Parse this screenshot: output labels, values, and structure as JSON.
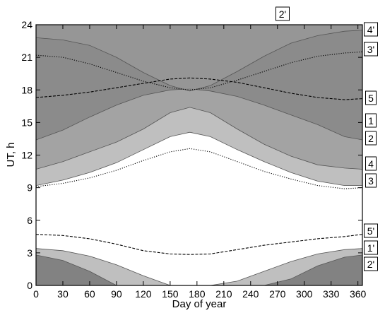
{
  "chart_data": {
    "type": "area",
    "xlabel": "Day of year",
    "ylabel": "UT, h",
    "xlim": [
      0,
      365
    ],
    "ylim": [
      0,
      24
    ],
    "xticks": [
      0,
      30,
      60,
      90,
      120,
      150,
      180,
      210,
      240,
      270,
      300,
      330,
      360
    ],
    "yticks": [
      0,
      3,
      6,
      9,
      12,
      15,
      18,
      21,
      24
    ],
    "grid": false,
    "series": [
      {
        "name": "1",
        "color": "#6e6e6e",
        "x": [
          0,
          30,
          60,
          90,
          120,
          150,
          172,
          195,
          225,
          255,
          285,
          315,
          345,
          365
        ],
        "y": [
          13.4,
          14.3,
          15.5,
          16.6,
          17.5,
          18.0,
          18.1,
          17.9,
          17.4,
          16.6,
          15.7,
          14.8,
          13.7,
          13.4
        ]
      },
      {
        "name": "2",
        "color": "#8c8c8c",
        "x": [
          0,
          30,
          60,
          90,
          120,
          150,
          172,
          195,
          225,
          255,
          285,
          315,
          345,
          365
        ],
        "y": [
          10.7,
          11.4,
          12.3,
          13.2,
          14.4,
          15.9,
          16.4,
          15.9,
          14.4,
          13.0,
          11.9,
          11.1,
          10.8,
          10.7
        ]
      },
      {
        "name": "3",
        "style": "dotted",
        "x": [
          0,
          30,
          60,
          90,
          120,
          150,
          172,
          195,
          225,
          255,
          285,
          315,
          345,
          365
        ],
        "y": [
          9.1,
          9.4,
          9.9,
          10.6,
          11.5,
          12.3,
          12.6,
          12.3,
          11.4,
          10.5,
          9.8,
          9.2,
          8.9,
          9.0
        ]
      },
      {
        "name": "4",
        "color": "#b4b4b4",
        "x": [
          0,
          30,
          60,
          90,
          120,
          150,
          172,
          195,
          225,
          255,
          285,
          315,
          345,
          365
        ],
        "y": [
          9.2,
          9.7,
          10.4,
          11.3,
          12.5,
          13.7,
          14.1,
          13.7,
          12.5,
          11.4,
          10.4,
          9.6,
          9.2,
          9.2
        ]
      },
      {
        "name": "5",
        "style": "dashed",
        "x": [
          0,
          30,
          60,
          90,
          120,
          150,
          172,
          195,
          225,
          255,
          285,
          315,
          345,
          365
        ],
        "y": [
          17.3,
          17.5,
          17.8,
          18.2,
          18.6,
          19.0,
          19.1,
          19.0,
          18.7,
          18.2,
          17.7,
          17.3,
          17.1,
          17.2
        ]
      },
      {
        "name": "5'",
        "style": "dashed",
        "x": [
          0,
          30,
          60,
          90,
          120,
          150,
          172,
          195,
          225,
          255,
          285,
          315,
          345,
          365
        ],
        "y": [
          4.7,
          4.6,
          4.3,
          3.8,
          3.2,
          2.9,
          2.85,
          2.9,
          3.3,
          3.7,
          4.0,
          4.3,
          4.5,
          4.7
        ]
      },
      {
        "name": "1'",
        "color": "#b4b4b4",
        "x": [
          0,
          30,
          60,
          90,
          120,
          150,
          172,
          195,
          225,
          255,
          285,
          315,
          345,
          365
        ],
        "y": [
          3.4,
          3.2,
          2.7,
          1.9,
          0.9,
          0.0,
          0.0,
          0.0,
          0.4,
          1.3,
          2.2,
          2.9,
          3.3,
          3.4
        ]
      },
      {
        "name": "2'",
        "color": "#6e6e6e",
        "x": [
          0,
          30,
          60,
          90,
          120,
          150,
          172,
          195,
          225,
          255,
          285,
          315,
          345,
          365
        ],
        "y": [
          2.8,
          2.3,
          1.3,
          0.0,
          0.0,
          0.0,
          0.0,
          0.0,
          0.0,
          0.0,
          0.6,
          1.8,
          2.6,
          2.8
        ]
      },
      {
        "name": "3'",
        "style": "dotted",
        "x": [
          0,
          30,
          60,
          90,
          120,
          150,
          172,
          195,
          225,
          255,
          285,
          315,
          345,
          365
        ],
        "y": [
          21.2,
          21.0,
          20.4,
          19.6,
          18.8,
          18.2,
          18.0,
          18.2,
          18.9,
          19.7,
          20.5,
          21.1,
          21.4,
          21.5
        ]
      },
      {
        "name": "4'",
        "color": "#9a9a9a",
        "x": [
          0,
          30,
          60,
          90,
          120,
          150,
          172,
          195,
          225,
          255,
          285,
          315,
          345,
          365
        ],
        "y": [
          22.8,
          22.6,
          22.1,
          21.0,
          19.6,
          18.4,
          17.9,
          18.4,
          19.7,
          21.1,
          22.3,
          23.0,
          23.4,
          23.5
        ]
      }
    ],
    "labels": [
      "2'",
      "4'",
      "3'",
      "5",
      "1",
      "2",
      "4",
      "3",
      "5'",
      "1'",
      "2'"
    ]
  }
}
